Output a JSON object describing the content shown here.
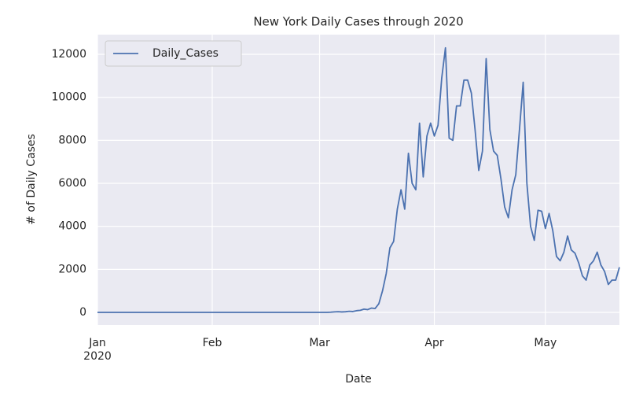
{
  "chart_data": {
    "type": "line",
    "title": "New York Daily Cases through 2020",
    "x_label": "Date",
    "y_label": "# of Daily Cases",
    "x": [
      "2020-01-01",
      "2020-01-02",
      "2020-01-03",
      "2020-01-04",
      "2020-01-05",
      "2020-01-06",
      "2020-01-07",
      "2020-01-08",
      "2020-01-09",
      "2020-01-10",
      "2020-01-11",
      "2020-01-12",
      "2020-01-13",
      "2020-01-14",
      "2020-01-15",
      "2020-01-16",
      "2020-01-17",
      "2020-01-18",
      "2020-01-19",
      "2020-01-20",
      "2020-01-21",
      "2020-01-22",
      "2020-01-23",
      "2020-01-24",
      "2020-01-25",
      "2020-01-26",
      "2020-01-27",
      "2020-01-28",
      "2020-01-29",
      "2020-01-30",
      "2020-01-31",
      "2020-02-01",
      "2020-02-02",
      "2020-02-03",
      "2020-02-04",
      "2020-02-05",
      "2020-02-06",
      "2020-02-07",
      "2020-02-08",
      "2020-02-09",
      "2020-02-10",
      "2020-02-11",
      "2020-02-12",
      "2020-02-13",
      "2020-02-14",
      "2020-02-15",
      "2020-02-16",
      "2020-02-17",
      "2020-02-18",
      "2020-02-19",
      "2020-02-20",
      "2020-02-21",
      "2020-02-22",
      "2020-02-23",
      "2020-02-24",
      "2020-02-25",
      "2020-02-26",
      "2020-02-27",
      "2020-02-28",
      "2020-02-29",
      "2020-03-01",
      "2020-03-02",
      "2020-03-03",
      "2020-03-04",
      "2020-03-05",
      "2020-03-06",
      "2020-03-07",
      "2020-03-08",
      "2020-03-09",
      "2020-03-10",
      "2020-03-11",
      "2020-03-12",
      "2020-03-13",
      "2020-03-14",
      "2020-03-15",
      "2020-03-16",
      "2020-03-17",
      "2020-03-18",
      "2020-03-19",
      "2020-03-20",
      "2020-03-21",
      "2020-03-22",
      "2020-03-23",
      "2020-03-24",
      "2020-03-25",
      "2020-03-26",
      "2020-03-27",
      "2020-03-28",
      "2020-03-29",
      "2020-03-30",
      "2020-03-31",
      "2020-04-01",
      "2020-04-02",
      "2020-04-03",
      "2020-04-04",
      "2020-04-05",
      "2020-04-06",
      "2020-04-07",
      "2020-04-08",
      "2020-04-09",
      "2020-04-10",
      "2020-04-11",
      "2020-04-12",
      "2020-04-13",
      "2020-04-14",
      "2020-04-15",
      "2020-04-16",
      "2020-04-17",
      "2020-04-18",
      "2020-04-19",
      "2020-04-20",
      "2020-04-21",
      "2020-04-22",
      "2020-04-23",
      "2020-04-24",
      "2020-04-25",
      "2020-04-26",
      "2020-04-27",
      "2020-04-28",
      "2020-04-29",
      "2020-04-30",
      "2020-05-01",
      "2020-05-02",
      "2020-05-03",
      "2020-05-04",
      "2020-05-05",
      "2020-05-06",
      "2020-05-07",
      "2020-05-08",
      "2020-05-09",
      "2020-05-10",
      "2020-05-11",
      "2020-05-12",
      "2020-05-13",
      "2020-05-14",
      "2020-05-15",
      "2020-05-16",
      "2020-05-17",
      "2020-05-18",
      "2020-05-19",
      "2020-05-20",
      "2020-05-21"
    ],
    "series": [
      {
        "name": "Daily_Cases",
        "color": "#4c72b0",
        "values": [
          0,
          0,
          0,
          0,
          0,
          0,
          0,
          0,
          0,
          0,
          0,
          0,
          0,
          0,
          0,
          0,
          0,
          0,
          0,
          0,
          0,
          0,
          0,
          0,
          0,
          0,
          0,
          0,
          0,
          0,
          0,
          0,
          0,
          0,
          0,
          0,
          0,
          0,
          0,
          0,
          0,
          0,
          0,
          0,
          0,
          0,
          0,
          0,
          0,
          0,
          0,
          0,
          0,
          0,
          0,
          0,
          0,
          0,
          0,
          0,
          1,
          0,
          1,
          9,
          22,
          33,
          20,
          30,
          50,
          40,
          80,
          95,
          150,
          130,
          200,
          180,
          400,
          1000,
          1800,
          3000,
          3300,
          4800,
          5700,
          4800,
          7400,
          6000,
          5700,
          8800,
          6300,
          8200,
          8800,
          8200,
          8700,
          10900,
          12300,
          8100,
          8000,
          9600,
          9600,
          10800,
          10800,
          10200,
          8500,
          6600,
          7500,
          11800,
          8500,
          7500,
          7300,
          6200,
          4900,
          4400,
          5700,
          6400,
          8500,
          10700,
          6000,
          4000,
          3350,
          4750,
          4700,
          3900,
          4600,
          3800,
          2600,
          2400,
          2800,
          3550,
          2900,
          2750,
          2300,
          1700,
          1500,
          2200,
          2400,
          2800,
          2200,
          1900,
          1300,
          1500,
          1500,
          2100
        ]
      }
    ],
    "xlim": [
      "2020-01-01",
      "2020-05-21"
    ],
    "xticks": [
      {
        "value": "2020-01-01",
        "label": "Jan\n2020"
      },
      {
        "value": "2020-02-01",
        "label": "Feb"
      },
      {
        "value": "2020-03-01",
        "label": "Mar"
      },
      {
        "value": "2020-04-01",
        "label": "Apr"
      },
      {
        "value": "2020-05-01",
        "label": "May"
      }
    ],
    "ylim": [
      -585,
      12915
    ],
    "yticks": [
      0,
      2000,
      4000,
      6000,
      8000,
      10000,
      12000
    ],
    "grid": true,
    "legend": "upper left"
  }
}
